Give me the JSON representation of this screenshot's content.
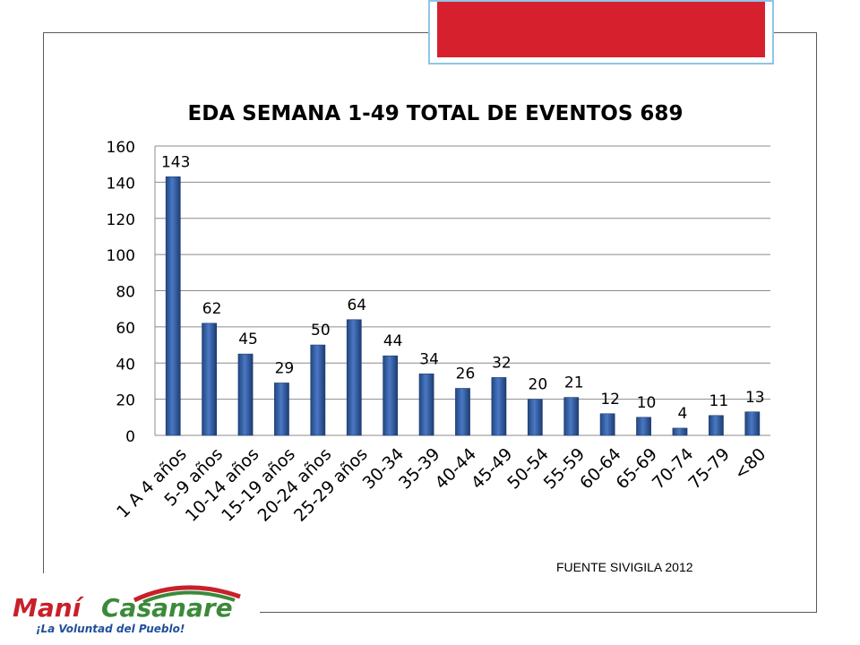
{
  "header_color": "#d7202e",
  "chart_data": {
    "type": "bar",
    "title": "EDA SEMANA 1-49 TOTAL DE EVENTOS 689",
    "categories": [
      "1 A 4 años",
      "5-9 años",
      "10-14 años",
      "15-19 años",
      "20-24 años",
      "25-29 años",
      "30-34",
      "35-39",
      "40-44",
      "45-49",
      "50-54",
      "55-59",
      "60-64",
      "65-69",
      "70-74",
      "75-79",
      "<80"
    ],
    "values": [
      143,
      62,
      45,
      29,
      50,
      64,
      44,
      34,
      26,
      32,
      20,
      21,
      12,
      10,
      4,
      11,
      13
    ],
    "ylim": [
      0,
      160
    ],
    "yticks": [
      0,
      20,
      40,
      60,
      80,
      100,
      120,
      140,
      160
    ],
    "grid": true,
    "legend": "none",
    "bar_color": "#3b62a8",
    "xlabel": "",
    "ylabel": ""
  },
  "footer": {
    "source": "FUENTE SIVIGILA 2012"
  },
  "logo": {
    "name_part1": "Maní",
    "name_part2": "Casanare",
    "slogan": "¡La Voluntad del Pueblo!",
    "colors": {
      "red": "#c8202a",
      "green": "#3a8a3a",
      "blue": "#1f4f9a"
    }
  }
}
